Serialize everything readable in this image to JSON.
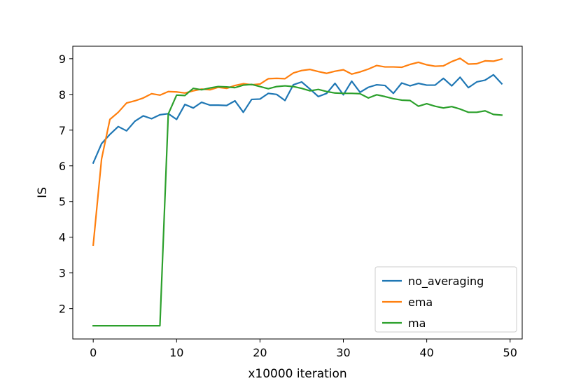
{
  "chart_data": {
    "type": "line",
    "xlabel": "x10000 iteration",
    "ylabel": "IS",
    "xlim": [
      -2.45,
      51.45
    ],
    "ylim": [
      1.15,
      9.35
    ],
    "xticks": [
      0,
      10,
      20,
      30,
      40,
      50
    ],
    "yticks": [
      2,
      3,
      4,
      5,
      6,
      7,
      8,
      9
    ],
    "grid": false,
    "legend_position": "lower-right",
    "x": [
      0,
      1,
      2,
      3,
      4,
      5,
      6,
      7,
      8,
      9,
      10,
      11,
      12,
      13,
      14,
      15,
      16,
      17,
      18,
      19,
      20,
      21,
      22,
      23,
      24,
      25,
      26,
      27,
      28,
      29,
      30,
      31,
      32,
      33,
      34,
      35,
      36,
      37,
      38,
      39,
      40,
      41,
      42,
      43,
      44,
      45,
      46,
      47,
      48,
      49
    ],
    "series": [
      {
        "name": "no_averaging",
        "color": "#1f77b4",
        "values": [
          6.08,
          6.62,
          6.88,
          7.1,
          6.98,
          7.25,
          7.4,
          7.32,
          7.43,
          7.46,
          7.3,
          7.72,
          7.62,
          7.78,
          7.7,
          7.7,
          7.69,
          7.82,
          7.5,
          7.86,
          7.87,
          8.03,
          8.0,
          7.83,
          8.27,
          8.35,
          8.15,
          7.94,
          8.03,
          8.31,
          7.99,
          8.37,
          8.06,
          8.2,
          8.27,
          8.25,
          8.03,
          8.32,
          8.24,
          8.31,
          8.26,
          8.26,
          8.45,
          8.24,
          8.48,
          8.19,
          8.35,
          8.4,
          8.55,
          8.3
        ]
      },
      {
        "name": "ema",
        "color": "#ff7f0e",
        "values": [
          3.78,
          6.19,
          7.3,
          7.5,
          7.76,
          7.82,
          7.9,
          8.02,
          7.98,
          8.08,
          8.07,
          8.04,
          8.1,
          8.15,
          8.13,
          8.2,
          8.17,
          8.25,
          8.3,
          8.27,
          8.29,
          8.44,
          8.45,
          8.44,
          8.6,
          8.67,
          8.7,
          8.64,
          8.59,
          8.65,
          8.69,
          8.57,
          8.63,
          8.71,
          8.81,
          8.77,
          8.77,
          8.76,
          8.84,
          8.9,
          8.83,
          8.79,
          8.8,
          8.92,
          9.01,
          8.85,
          8.86,
          8.94,
          8.93,
          8.99
        ]
      },
      {
        "name": "ma",
        "color": "#2ca02c",
        "values": [
          1.52,
          1.52,
          1.52,
          1.52,
          1.52,
          1.52,
          1.52,
          1.52,
          1.52,
          7.45,
          7.98,
          7.97,
          8.17,
          8.13,
          8.18,
          8.22,
          8.21,
          8.19,
          8.26,
          8.28,
          8.22,
          8.16,
          8.22,
          8.24,
          8.22,
          8.17,
          8.1,
          8.14,
          8.08,
          8.04,
          8.03,
          8.03,
          8.02,
          7.9,
          7.99,
          7.94,
          7.88,
          7.84,
          7.83,
          7.67,
          7.74,
          7.67,
          7.62,
          7.66,
          7.59,
          7.5,
          7.5,
          7.54,
          7.44,
          7.42
        ]
      }
    ]
  }
}
